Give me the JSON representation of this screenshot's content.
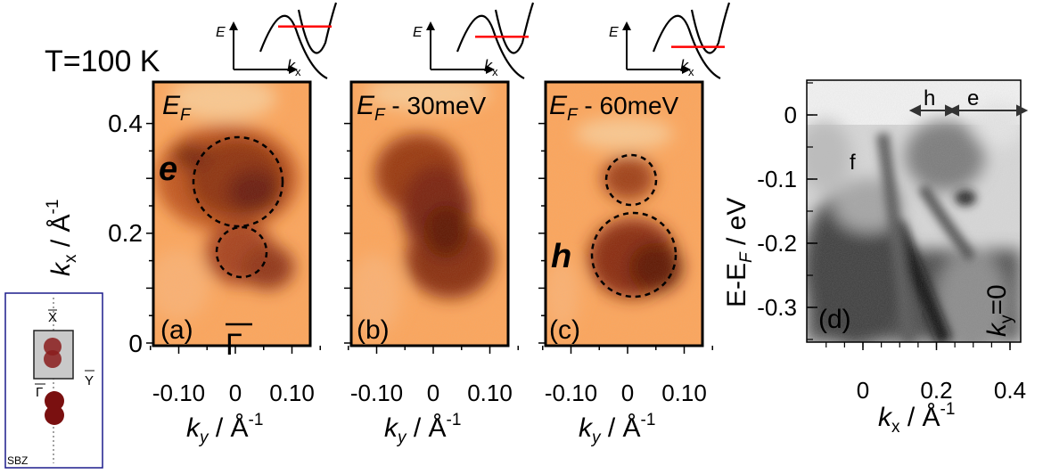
{
  "temperature_label": "T=100 K",
  "sbz": {
    "label": "SBZ",
    "points": {
      "X": "X",
      "Gamma": "Γ",
      "Y": "Y"
    }
  },
  "schematic_axes": {
    "energy": "E",
    "momentum_sym": "k",
    "momentum_sub": "x"
  },
  "panels_map": [
    {
      "tag": "(a)",
      "energy_sym": "E",
      "energy_sub": "F",
      "energy_offset": "",
      "fermi_level_fraction": 0.28
    },
    {
      "tag": "(b)",
      "energy_sym": "E",
      "energy_sub": "F",
      "energy_offset": " - 30meV",
      "fermi_level_fraction": 0.47
    },
    {
      "tag": "(c)",
      "energy_sym": "E",
      "energy_sub": "F",
      "energy_offset": " - 60meV",
      "fermi_level_fraction": 0.66
    }
  ],
  "pocket_labels": {
    "electron": "e",
    "hole": "h"
  },
  "gamma_label": "Γ",
  "map_axes": {
    "ylabel_sym": "k",
    "ylabel_sub": "x",
    "ylabel_units": " / Å",
    "xlabel_sym": "k",
    "xlabel_sub": "y",
    "xlabel_units": " / Å",
    "units_exponent": "-1",
    "yticks": [
      "0.4",
      "0.2",
      "0"
    ],
    "xticks": [
      "-0.10",
      "0",
      "0.10"
    ]
  },
  "panel_d": {
    "tag": "(d)",
    "band_label": "f",
    "hole_label": "h",
    "electron_label": "e",
    "cut_sym": "k",
    "cut_sub": "y",
    "cut_value": "=0",
    "ylabel_main": "E-E",
    "ylabel_sub": "F",
    "ylabel_units": " / eV",
    "xlabel_sym": "k",
    "xlabel_sub": "x",
    "xlabel_units": " / Å",
    "units_exponent": "-1",
    "yticks": [
      "0",
      "-0.1",
      "-0.2",
      "-0.3"
    ],
    "xticks": [
      "0",
      "0.2",
      "0.4"
    ]
  },
  "colors": {
    "map_light": "#fda55a",
    "map_dark": "#6a1a08",
    "arpes_light": "#f2f2f2",
    "arpes_dark": "#1a1a1a",
    "fermi_line": "#ff0000",
    "sbz_frame": "#1c1c8c",
    "sbz_pocket": "#8a1c1c"
  },
  "chart_data": [
    {
      "type": "heatmap",
      "panel": "(a)",
      "title": "E_F",
      "xlabel": "k_y / Å^-1",
      "ylabel": "k_x / Å^-1",
      "xlim": [
        -0.16,
        0.16
      ],
      "ylim": [
        -0.01,
        0.47
      ],
      "features": [
        {
          "kind": "electron-pocket",
          "center_ky": 0.0,
          "center_kx": 0.29,
          "radius": 0.08
        },
        {
          "kind": "hole-pocket",
          "center_ky": 0.015,
          "center_kx": 0.16,
          "radius": 0.055
        }
      ]
    },
    {
      "type": "heatmap",
      "panel": "(b)",
      "title": "E_F - 30meV",
      "xlabel": "k_y / Å^-1",
      "ylabel": "k_x / Å^-1",
      "xlim": [
        -0.16,
        0.16
      ],
      "ylim": [
        -0.01,
        0.47
      ],
      "features": []
    },
    {
      "type": "heatmap",
      "panel": "(c)",
      "title": "E_F - 60meV",
      "xlabel": "k_y / Å^-1",
      "ylabel": "k_x / Å^-1",
      "xlim": [
        -0.16,
        0.16
      ],
      "ylim": [
        -0.01,
        0.47
      ],
      "features": [
        {
          "kind": "electron-pocket",
          "center_ky": 0.01,
          "center_kx": 0.29,
          "radius": 0.045
        },
        {
          "kind": "hole-pocket",
          "center_ky": 0.015,
          "center_kx": 0.16,
          "radius": 0.075
        }
      ]
    },
    {
      "type": "heatmap",
      "panel": "(d)",
      "xlabel": "k_x / Å^-1",
      "ylabel": "E-E_F / eV",
      "xlim": [
        -0.13,
        0.45
      ],
      "ylim": [
        -0.36,
        0.06
      ],
      "xticks": [
        0,
        0.2,
        0.4
      ],
      "yticks": [
        0,
        -0.1,
        -0.2,
        -0.3
      ]
    }
  ]
}
